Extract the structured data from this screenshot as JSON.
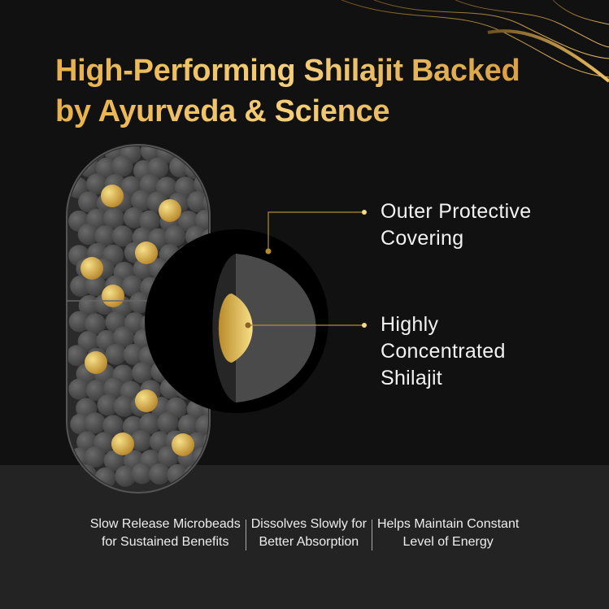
{
  "title": {
    "line1": "High-Performing Shilajit Backed",
    "line2": "by Ayurveda & Science"
  },
  "callouts": [
    {
      "line1": "Outer Protective",
      "line2": "Covering"
    },
    {
      "line1": "Highly",
      "line2": "Concentrated",
      "line3": "Shilajit"
    }
  ],
  "features": [
    {
      "line1": "Slow Release Microbeads",
      "line2": "for Sustained Benefits"
    },
    {
      "line1": "Dissolves Slowly for",
      "line2": "Better Absorption"
    },
    {
      "line1": "Helps Maintain Constant",
      "line2": "Level of Energy"
    }
  ],
  "colors": {
    "gold": "#e7b04a",
    "background": "#111111",
    "band": "#232323"
  },
  "icons": [
    "capsule-illustration",
    "microbead-cross-section",
    "gold-swirl-decoration"
  ]
}
